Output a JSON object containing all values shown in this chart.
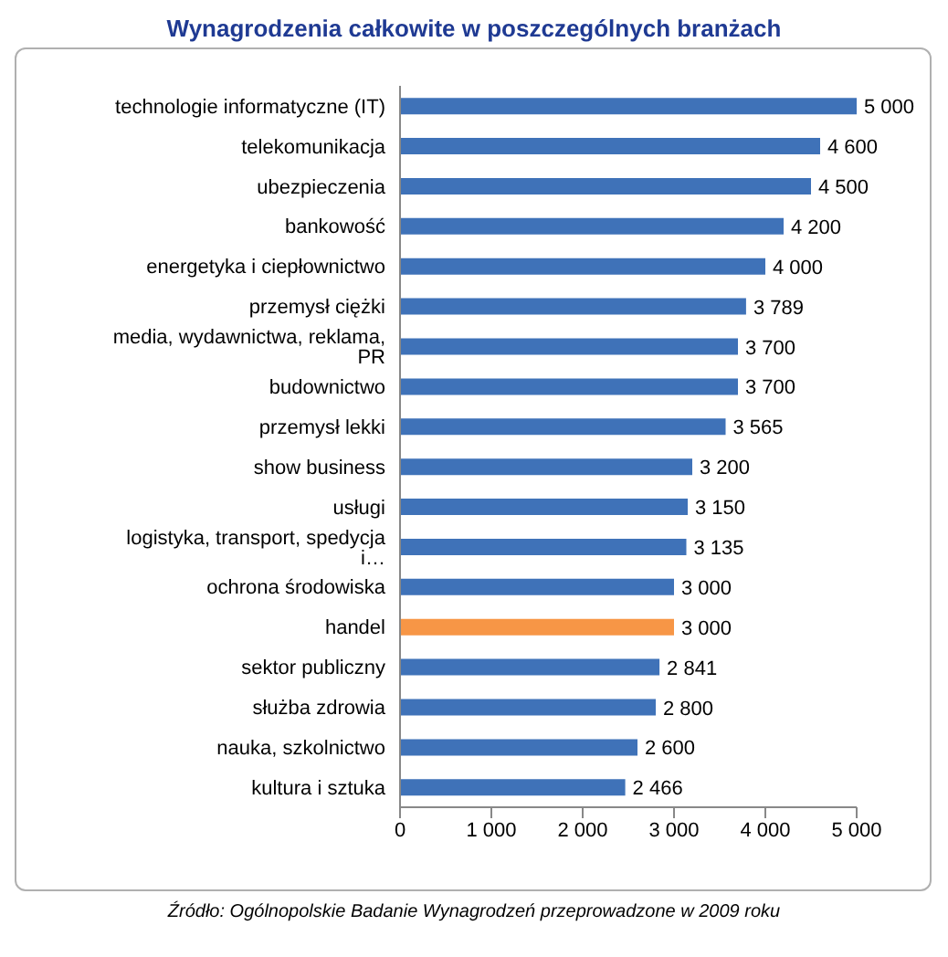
{
  "chart_data": {
    "type": "bar",
    "orientation": "horizontal",
    "title": "Wynagrodzenia całkowite w poszczególnych branżach",
    "categories": [
      "technologie informatyczne (IT)",
      "telekomunikacja",
      "ubezpieczenia",
      "bankowość",
      "energetyka i ciepłownictwo",
      "przemysł ciężki",
      "media, wydawnictwa,  reklama, PR",
      "budownictwo",
      "przemysł lekki",
      "show business",
      "usługi",
      "logistyka, transport, spedycja i…",
      "ochrona środowiska",
      "handel",
      "sektor publiczny",
      "służba zdrowia",
      "nauka, szkolnictwo",
      "kultura i sztuka"
    ],
    "values": [
      5000,
      4600,
      4500,
      4200,
      4000,
      3789,
      3700,
      3700,
      3565,
      3200,
      3150,
      3135,
      3000,
      3000,
      2841,
      2800,
      2600,
      2466
    ],
    "colors": [
      "#3f72b8",
      "#3f72b8",
      "#3f72b8",
      "#3f72b8",
      "#3f72b8",
      "#3f72b8",
      "#3f72b8",
      "#3f72b8",
      "#3f72b8",
      "#3f72b8",
      "#3f72b8",
      "#3f72b8",
      "#3f72b8",
      "#f79646",
      "#3f72b8",
      "#3f72b8",
      "#3f72b8",
      "#3f72b8"
    ],
    "value_labels": [
      "5 000",
      "4 600",
      "4 500",
      "4 200",
      "4 000",
      "3 789",
      "3 700",
      "3 700",
      "3 565",
      "3 200",
      "3 150",
      "3 135",
      "3 000",
      "3 000",
      "2 841",
      "2 800",
      "2 600",
      "2 466"
    ],
    "xlim": [
      0,
      5000
    ],
    "xticks": [
      0,
      {
        "value": 1000,
        "label": "1 000"
      },
      {
        "value": 2000,
        "label": "2 000"
      },
      {
        "value": 3000,
        "label": "3 000"
      },
      {
        "value": 4000,
        "label": "4 000"
      },
      {
        "value": 5000,
        "label": "5 000"
      }
    ],
    "annotations": [
      "Źródło: Ogólnopolskie Badanie Wynagrodzeń przeprowadzone w 2009 roku"
    ]
  }
}
